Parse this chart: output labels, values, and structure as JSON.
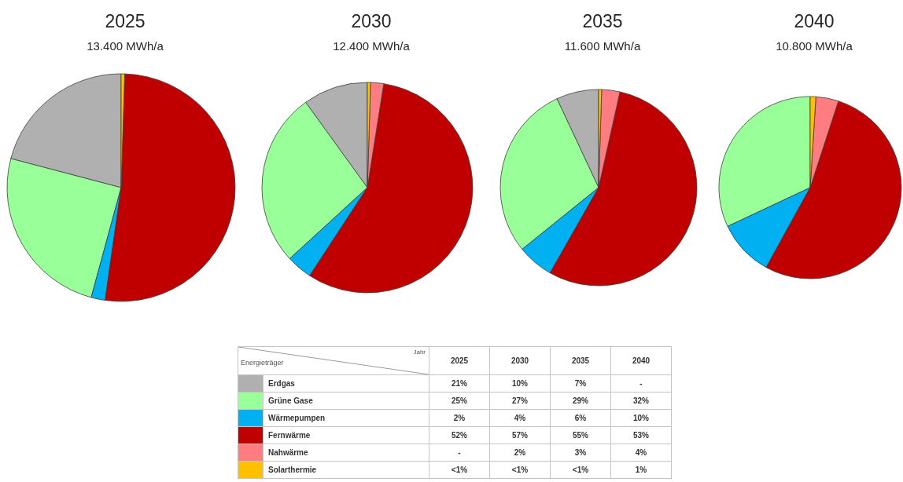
{
  "chart_data": {
    "type": "pie",
    "categories": [
      "Erdgas",
      "Grüne Gase",
      "Wärmepumpen",
      "Fernwärme",
      "Nahwärme",
      "Solarthermie"
    ],
    "colors": [
      "#b0b0b0",
      "#99ff99",
      "#00b0f0",
      "#c00000",
      "#ff7c80",
      "#ffc000"
    ],
    "series": [
      {
        "name": "2025",
        "values": [
          21,
          25,
          2,
          52,
          null,
          0.5
        ],
        "value_labels": [
          "21%",
          "25%",
          "2%",
          "52%",
          "-",
          "<1%"
        ]
      },
      {
        "name": "2030",
        "values": [
          10,
          27,
          4,
          57,
          2,
          0.5
        ],
        "value_labels": [
          "10%",
          "27%",
          "4%",
          "57%",
          "2%",
          "<1%"
        ]
      },
      {
        "name": "2035",
        "values": [
          7,
          29,
          6,
          55,
          3,
          0.5
        ],
        "value_labels": [
          "7%",
          "29%",
          "6%",
          "55%",
          "3%",
          "<1%"
        ]
      },
      {
        "name": "2040",
        "values": [
          null,
          32,
          10,
          53,
          4,
          1
        ],
        "value_labels": [
          "-",
          "32%",
          "10%",
          "53%",
          "4%",
          "1%"
        ]
      }
    ],
    "annotations": [
      "13.400 MWh/a",
      "12.400 MWh/a",
      "11.600 MWh/a",
      "10.800 MWh/a",
      "Jahr"
    ],
    "legend": "bottom",
    "legend_title": "Energieträger"
  }
}
